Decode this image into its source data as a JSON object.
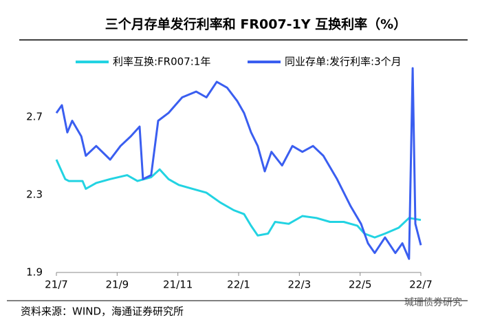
{
  "chart_data": {
    "type": "line",
    "title": "三个月存单发行利率和 FR007-1Y 互换利率（%）",
    "source": "资料来源：WIND，海通证券研究所",
    "watermark": "瑊珊债券研究",
    "xlim": [
      0,
      12
    ],
    "xticks": [
      {
        "value": 0,
        "label": "21/7"
      },
      {
        "value": 2,
        "label": "21/9"
      },
      {
        "value": 4,
        "label": "21/11"
      },
      {
        "value": 6,
        "label": "22/1"
      },
      {
        "value": 8,
        "label": "22/3"
      },
      {
        "value": 10,
        "label": "22/5"
      },
      {
        "value": 12,
        "label": "22/7"
      }
    ],
    "ylim": [
      1.9,
      3.0
    ],
    "yticks": [
      1.9,
      2.3,
      2.7
    ],
    "legend": "top",
    "series": [
      {
        "name": "利率互换:FR007:1年",
        "color": "#22d3e2",
        "x": [
          0,
          0.29,
          0.41,
          0.86,
          0.97,
          1.31,
          1.77,
          2.33,
          2.67,
          3.12,
          3.4,
          3.69,
          4.03,
          4.48,
          4.94,
          5.39,
          5.84,
          6.18,
          6.41,
          6.63,
          6.97,
          7.2,
          7.65,
          8.1,
          8.56,
          9.01,
          9.46,
          9.91,
          10.14,
          10.48,
          10.82,
          11.27,
          11.61,
          12
        ],
        "values": [
          2.48,
          2.38,
          2.37,
          2.37,
          2.33,
          2.36,
          2.38,
          2.4,
          2.37,
          2.39,
          2.43,
          2.38,
          2.35,
          2.33,
          2.31,
          2.26,
          2.22,
          2.2,
          2.14,
          2.09,
          2.1,
          2.16,
          2.15,
          2.19,
          2.18,
          2.16,
          2.16,
          2.14,
          2.1,
          2.08,
          2.1,
          2.13,
          2.18,
          2.17
        ]
      },
      {
        "name": "同业存单:发行利率:3个月",
        "color": "#3a5ef0",
        "x": [
          0,
          0.18,
          0.36,
          0.52,
          0.82,
          0.97,
          1.31,
          1.77,
          2.11,
          2.45,
          2.74,
          2.85,
          3.12,
          3.35,
          3.69,
          4.14,
          4.6,
          4.94,
          5.28,
          5.62,
          5.96,
          6.18,
          6.41,
          6.63,
          6.86,
          7.08,
          7.43,
          7.77,
          8.1,
          8.45,
          8.79,
          9.24,
          9.69,
          10.03,
          10.26,
          10.48,
          10.82,
          11.16,
          11.39,
          11.61,
          11.73,
          11.82,
          12
        ],
        "values": [
          2.72,
          2.76,
          2.62,
          2.68,
          2.6,
          2.5,
          2.55,
          2.48,
          2.55,
          2.6,
          2.65,
          2.38,
          2.4,
          2.68,
          2.72,
          2.8,
          2.83,
          2.8,
          2.88,
          2.85,
          2.78,
          2.72,
          2.62,
          2.55,
          2.42,
          2.52,
          2.45,
          2.55,
          2.52,
          2.55,
          2.5,
          2.38,
          2.24,
          2.15,
          2.05,
          2.0,
          2.08,
          2.0,
          2.05,
          1.97,
          2.95,
          2.15,
          2.04
        ]
      }
    ]
  }
}
